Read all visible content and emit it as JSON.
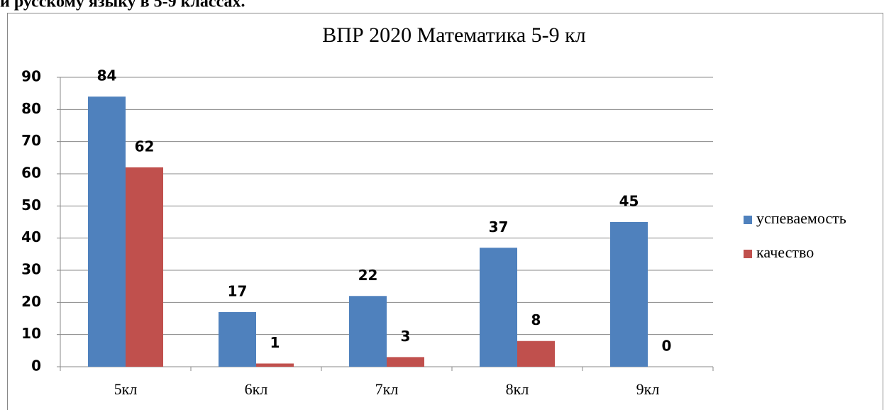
{
  "heading": "и русскому языку в 5-9 классах.",
  "chart_data": {
    "type": "bar",
    "title": "ВПР 2020 Математика 5-9 кл",
    "categories": [
      "5кл",
      "6кл",
      "7кл",
      "8кл",
      "9кл"
    ],
    "series": [
      {
        "name": "успеваемость",
        "color": "#4f81bd",
        "values": [
          84,
          17,
          22,
          37,
          45
        ]
      },
      {
        "name": "качество",
        "color": "#c0504d",
        "values": [
          62,
          1,
          3,
          8,
          0
        ]
      }
    ],
    "ylim": [
      0,
      90
    ],
    "yticks": [
      0,
      10,
      20,
      30,
      40,
      50,
      60,
      70,
      80,
      90
    ],
    "grid": true,
    "legend": "right"
  }
}
